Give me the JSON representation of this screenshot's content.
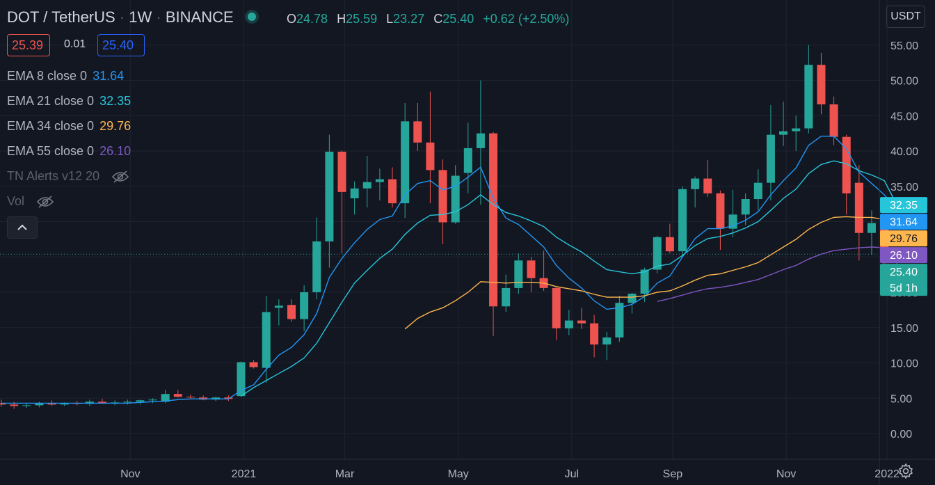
{
  "header": {
    "symbol": "DOT / TetherUS",
    "interval": "1W",
    "exchange": "BINANCE",
    "open_label": "O",
    "open": "24.78",
    "high_label": "H",
    "high": "25.59",
    "low_label": "L",
    "low": "23.27",
    "close_label": "C",
    "close": "25.40",
    "change": "+0.62 (+2.50%)"
  },
  "trade": {
    "bid": "25.39",
    "spread": "0.01",
    "ask": "25.40"
  },
  "indicators": [
    {
      "label": "EMA 8 close 0",
      "value": "31.64",
      "color": "#2196f3"
    },
    {
      "label": "EMA 21 close 0",
      "value": "32.35",
      "color": "#26c6da"
    },
    {
      "label": "EMA 34 close 0",
      "value": "29.76",
      "color": "#ffb74d"
    },
    {
      "label": "EMA 55 close 0",
      "value": "26.10",
      "color": "#7e57c2"
    }
  ],
  "hidden_indicators": [
    "TN Alerts v12 20",
    "Vol"
  ],
  "currency": "USDT",
  "colors": {
    "up": "#26a69a",
    "down": "#ef5350",
    "background": "#131722",
    "grid": "#1f2330",
    "text": "#b2b5be"
  },
  "chart_data": {
    "type": "candlestick",
    "y_ticks": [
      "55.00",
      "50.00",
      "45.00",
      "40.00",
      "35.00",
      "30.00",
      "25.00",
      "20.00",
      "15.00",
      "10.00",
      "5.00",
      "0.00"
    ],
    "x_ticks": [
      "Nov",
      "2021",
      "Mar",
      "May",
      "Jul",
      "Sep",
      "Nov",
      "2022"
    ],
    "ylim": [
      -2.5,
      58
    ],
    "price_labels": [
      {
        "text": "32.35",
        "value": 32.35,
        "color": "#26c6da"
      },
      {
        "text": "31.64",
        "value": 31.64,
        "color": "#2196f3"
      },
      {
        "text": "29.76",
        "value": 29.76,
        "color": "#ffb74d"
      },
      {
        "text": "26.10",
        "value": 26.1,
        "color": "#7e57c2"
      },
      {
        "text": "25.40",
        "value": 25.4,
        "color": "#26a69a",
        "countdown": "5d 1h"
      }
    ],
    "candles": [
      {
        "date": "2020-08-24",
        "o": 4.3,
        "h": 4.8,
        "l": 3.8,
        "c": 4.1
      },
      {
        "date": "2020-08-31",
        "o": 4.1,
        "h": 4.5,
        "l": 3.5,
        "c": 3.9
      },
      {
        "date": "2020-09-07",
        "o": 3.9,
        "h": 4.3,
        "l": 3.6,
        "c": 4.0
      },
      {
        "date": "2020-09-14",
        "o": 4.0,
        "h": 4.5,
        "l": 3.7,
        "c": 4.3
      },
      {
        "date": "2020-09-21",
        "o": 4.3,
        "h": 4.7,
        "l": 3.9,
        "c": 4.1
      },
      {
        "date": "2020-09-28",
        "o": 4.1,
        "h": 4.4,
        "l": 3.9,
        "c": 4.3
      },
      {
        "date": "2020-10-05",
        "o": 4.3,
        "h": 4.6,
        "l": 4.0,
        "c": 4.2
      },
      {
        "date": "2020-10-12",
        "o": 4.2,
        "h": 4.8,
        "l": 3.9,
        "c": 4.5
      },
      {
        "date": "2020-10-19",
        "o": 4.5,
        "h": 4.9,
        "l": 4.2,
        "c": 4.3
      },
      {
        "date": "2020-10-26",
        "o": 4.3,
        "h": 4.7,
        "l": 4.0,
        "c": 4.4
      },
      {
        "date": "2020-11-02",
        "o": 4.4,
        "h": 4.8,
        "l": 4.1,
        "c": 4.5
      },
      {
        "date": "2020-11-09",
        "o": 4.5,
        "h": 4.8,
        "l": 4.1,
        "c": 4.7
      },
      {
        "date": "2020-11-16",
        "o": 4.7,
        "h": 5.0,
        "l": 4.3,
        "c": 4.8
      },
      {
        "date": "2020-11-23",
        "o": 4.5,
        "h": 6.2,
        "l": 4.3,
        "c": 5.6
      },
      {
        "date": "2020-11-30",
        "o": 5.6,
        "h": 6.2,
        "l": 5.1,
        "c": 5.2
      },
      {
        "date": "2020-12-07",
        "o": 5.2,
        "h": 5.5,
        "l": 4.9,
        "c": 5.1
      },
      {
        "date": "2020-12-14",
        "o": 5.1,
        "h": 5.4,
        "l": 4.7,
        "c": 4.8
      },
      {
        "date": "2020-12-21",
        "o": 4.8,
        "h": 5.2,
        "l": 4.6,
        "c": 5.1
      },
      {
        "date": "2020-12-28",
        "o": 5.1,
        "h": 5.4,
        "l": 4.6,
        "c": 4.9
      },
      {
        "date": "2021-01-04",
        "o": 5.3,
        "h": 10.2,
        "l": 5.2,
        "c": 10.1
      },
      {
        "date": "2021-01-11",
        "o": 10.1,
        "h": 10.4,
        "l": 9.2,
        "c": 9.4
      },
      {
        "date": "2021-01-18",
        "o": 9.3,
        "h": 19.5,
        "l": 7.2,
        "c": 17.2
      },
      {
        "date": "2021-01-25",
        "o": 17.8,
        "h": 19.0,
        "l": 15.3,
        "c": 18.1
      },
      {
        "date": "2021-02-01",
        "o": 18.2,
        "h": 19.0,
        "l": 15.8,
        "c": 16.2
      },
      {
        "date": "2021-02-08",
        "o": 16.2,
        "h": 21.0,
        "l": 14.5,
        "c": 20.0
      },
      {
        "date": "2021-02-15",
        "o": 20.0,
        "h": 30.6,
        "l": 19.0,
        "c": 27.2
      },
      {
        "date": "2021-02-22",
        "o": 27.2,
        "h": 42.3,
        "l": 23.5,
        "c": 39.9
      },
      {
        "date": "2021-03-01",
        "o": 39.9,
        "h": 40.1,
        "l": 25.5,
        "c": 34.2
      },
      {
        "date": "2021-03-08",
        "o": 33.3,
        "h": 35.7,
        "l": 31.0,
        "c": 34.7
      },
      {
        "date": "2021-03-15",
        "o": 34.7,
        "h": 39.3,
        "l": 32.0,
        "c": 35.6
      },
      {
        "date": "2021-03-22",
        "o": 35.6,
        "h": 37.5,
        "l": 33.0,
        "c": 36.0
      },
      {
        "date": "2021-03-29",
        "o": 36.0,
        "h": 37.7,
        "l": 32.0,
        "c": 32.6
      },
      {
        "date": "2021-04-05",
        "o": 32.6,
        "h": 46.8,
        "l": 30.5,
        "c": 44.2
      },
      {
        "date": "2021-04-12",
        "o": 44.2,
        "h": 46.8,
        "l": 40.0,
        "c": 41.2
      },
      {
        "date": "2021-04-19",
        "o": 41.2,
        "h": 48.4,
        "l": 32.6,
        "c": 37.3
      },
      {
        "date": "2021-04-26",
        "o": 37.3,
        "h": 38.8,
        "l": 26.8,
        "c": 29.9
      },
      {
        "date": "2021-05-03",
        "o": 29.9,
        "h": 38.0,
        "l": 29.7,
        "c": 36.5
      },
      {
        "date": "2021-05-10",
        "o": 36.9,
        "h": 44.0,
        "l": 34.0,
        "c": 40.4
      },
      {
        "date": "2021-05-17",
        "o": 40.4,
        "h": 50.0,
        "l": 32.4,
        "c": 42.5
      },
      {
        "date": "2021-05-24",
        "o": 42.5,
        "h": 42.7,
        "l": 13.8,
        "c": 18.0
      },
      {
        "date": "2021-05-31",
        "o": 18.0,
        "h": 22.5,
        "l": 17.2,
        "c": 20.6
      },
      {
        "date": "2021-06-07",
        "o": 20.6,
        "h": 25.5,
        "l": 19.8,
        "c": 24.5
      },
      {
        "date": "2021-06-14",
        "o": 24.5,
        "h": 25.0,
        "l": 20.0,
        "c": 22.0
      },
      {
        "date": "2021-06-21",
        "o": 22.0,
        "h": 25.9,
        "l": 20.2,
        "c": 20.6
      },
      {
        "date": "2021-06-28",
        "o": 20.6,
        "h": 20.8,
        "l": 13.2,
        "c": 14.9
      },
      {
        "date": "2021-07-05",
        "o": 14.9,
        "h": 17.5,
        "l": 13.9,
        "c": 16.0
      },
      {
        "date": "2021-07-12",
        "o": 16.0,
        "h": 17.8,
        "l": 14.8,
        "c": 15.6
      },
      {
        "date": "2021-07-19",
        "o": 15.6,
        "h": 16.8,
        "l": 10.8,
        "c": 12.6
      },
      {
        "date": "2021-07-26",
        "o": 12.6,
        "h": 14.4,
        "l": 10.4,
        "c": 13.6
      },
      {
        "date": "2021-08-02",
        "o": 13.6,
        "h": 19.5,
        "l": 13.0,
        "c": 18.5
      },
      {
        "date": "2021-08-09",
        "o": 18.5,
        "h": 19.9,
        "l": 17.0,
        "c": 19.8
      },
      {
        "date": "2021-08-16",
        "o": 19.8,
        "h": 23.5,
        "l": 18.6,
        "c": 23.2
      },
      {
        "date": "2021-08-23",
        "o": 23.2,
        "h": 28.0,
        "l": 22.7,
        "c": 27.8
      },
      {
        "date": "2021-08-30",
        "o": 27.8,
        "h": 29.7,
        "l": 25.5,
        "c": 25.8
      },
      {
        "date": "2021-09-06",
        "o": 25.8,
        "h": 35.0,
        "l": 25.0,
        "c": 34.6
      },
      {
        "date": "2021-09-13",
        "o": 34.6,
        "h": 36.4,
        "l": 32.0,
        "c": 36.1
      },
      {
        "date": "2021-09-20",
        "o": 36.1,
        "h": 38.7,
        "l": 33.5,
        "c": 34.0
      },
      {
        "date": "2021-09-27",
        "o": 34.0,
        "h": 34.4,
        "l": 26.0,
        "c": 29.0
      },
      {
        "date": "2021-10-04",
        "o": 29.0,
        "h": 34.5,
        "l": 27.8,
        "c": 31.0
      },
      {
        "date": "2021-10-11",
        "o": 31.0,
        "h": 34.0,
        "l": 29.5,
        "c": 33.2
      },
      {
        "date": "2021-10-18",
        "o": 33.2,
        "h": 37.4,
        "l": 31.6,
        "c": 35.5
      },
      {
        "date": "2021-10-25",
        "o": 35.5,
        "h": 46.5,
        "l": 33.0,
        "c": 42.3
      },
      {
        "date": "2021-11-01",
        "o": 42.3,
        "h": 47.0,
        "l": 40.7,
        "c": 42.8
      },
      {
        "date": "2021-11-08",
        "o": 42.8,
        "h": 45.0,
        "l": 40.0,
        "c": 43.2
      },
      {
        "date": "2021-11-15",
        "o": 43.2,
        "h": 55.0,
        "l": 42.5,
        "c": 52.2
      },
      {
        "date": "2021-11-22",
        "o": 52.2,
        "h": 53.9,
        "l": 45.2,
        "c": 46.6
      },
      {
        "date": "2021-11-29",
        "o": 46.6,
        "h": 47.7,
        "l": 40.8,
        "c": 42.0
      },
      {
        "date": "2021-12-06",
        "o": 42.0,
        "h": 42.3,
        "l": 31.0,
        "c": 34.0
      },
      {
        "date": "2021-12-13",
        "o": 35.5,
        "h": 38.0,
        "l": 24.5,
        "c": 28.4
      },
      {
        "date": "2021-12-20",
        "o": 28.4,
        "h": 31.6,
        "l": 25.3,
        "c": 29.8
      },
      {
        "date": "2021-12-27",
        "o": 29.8,
        "h": 30.0,
        "l": 24.0,
        "c": 25.0
      },
      {
        "date": "2022-01-03",
        "o": 24.78,
        "h": 25.59,
        "l": 23.27,
        "c": 25.4
      }
    ],
    "series": [
      {
        "name": "EMA 8",
        "color": "#2196f3",
        "values": [
          4.3,
          4.3,
          4.3,
          4.3,
          4.3,
          4.3,
          4.3,
          4.3,
          4.3,
          4.3,
          4.3,
          4.4,
          4.5,
          4.6,
          4.8,
          4.9,
          4.9,
          4.9,
          4.9,
          6.1,
          6.9,
          9.1,
          11.1,
          12.2,
          14.0,
          17.0,
          22.1,
          24.8,
          27.0,
          28.9,
          30.3,
          30.8,
          33.8,
          35.4,
          35.8,
          34.5,
          35.0,
          36.3,
          37.7,
          33.3,
          30.5,
          29.6,
          28.0,
          26.4,
          23.8,
          22.0,
          20.6,
          18.8,
          17.6,
          17.8,
          18.3,
          19.4,
          21.3,
          22.3,
          25.0,
          27.6,
          29.0,
          29.0,
          29.4,
          30.2,
          31.4,
          33.8,
          35.8,
          37.6,
          40.8,
          42.1,
          42.1,
          40.3,
          37.0,
          35.4,
          33.8,
          31.64
        ]
      },
      {
        "name": "EMA 21",
        "color": "#26c6da",
        "values": [
          null,
          null,
          null,
          null,
          null,
          null,
          null,
          null,
          null,
          null,
          null,
          null,
          null,
          null,
          null,
          null,
          null,
          null,
          null,
          5.3,
          6.5,
          7.5,
          8.5,
          9.5,
          10.7,
          12.8,
          15.7,
          18.6,
          21.3,
          23.1,
          24.8,
          26.1,
          28.2,
          29.8,
          30.9,
          31.0,
          31.4,
          32.4,
          33.8,
          32.4,
          31.3,
          30.8,
          30.1,
          29.3,
          27.8,
          26.7,
          25.7,
          24.4,
          23.2,
          22.9,
          22.6,
          22.9,
          23.7,
          24.0,
          25.2,
          26.6,
          27.6,
          27.9,
          28.4,
          29.1,
          30.0,
          31.6,
          33.3,
          34.6,
          36.8,
          38.1,
          38.6,
          38.2,
          37.2,
          36.6,
          35.8,
          32.35
        ]
      },
      {
        "name": "EMA 34",
        "color": "#ffb74d",
        "values": [
          null,
          null,
          null,
          null,
          null,
          null,
          null,
          null,
          null,
          null,
          null,
          null,
          null,
          null,
          null,
          null,
          null,
          null,
          null,
          null,
          null,
          null,
          null,
          null,
          null,
          null,
          null,
          null,
          null,
          null,
          null,
          null,
          14.8,
          16.3,
          17.2,
          17.8,
          18.8,
          20.0,
          21.5,
          21.4,
          21.3,
          21.4,
          21.4,
          21.3,
          20.8,
          20.5,
          20.2,
          19.7,
          19.3,
          19.3,
          19.3,
          19.5,
          20.0,
          20.2,
          20.9,
          21.7,
          22.4,
          22.6,
          23.1,
          23.6,
          24.2,
          25.3,
          26.4,
          27.5,
          28.9,
          29.9,
          30.6,
          30.7,
          30.6,
          30.6,
          30.3,
          29.76
        ]
      },
      {
        "name": "EMA 55",
        "color": "#7e57c2",
        "values": [
          null,
          null,
          null,
          null,
          null,
          null,
          null,
          null,
          null,
          null,
          null,
          null,
          null,
          null,
          null,
          null,
          null,
          null,
          null,
          null,
          null,
          null,
          null,
          null,
          null,
          null,
          null,
          null,
          null,
          null,
          null,
          null,
          null,
          null,
          null,
          null,
          null,
          null,
          null,
          null,
          null,
          null,
          null,
          null,
          null,
          null,
          null,
          null,
          null,
          null,
          null,
          null,
          18.7,
          19.1,
          19.6,
          20.1,
          20.5,
          20.7,
          21.0,
          21.4,
          21.8,
          22.5,
          23.2,
          23.8,
          24.7,
          25.4,
          25.9,
          26.1,
          26.3,
          26.4,
          26.3,
          26.1
        ]
      }
    ]
  }
}
